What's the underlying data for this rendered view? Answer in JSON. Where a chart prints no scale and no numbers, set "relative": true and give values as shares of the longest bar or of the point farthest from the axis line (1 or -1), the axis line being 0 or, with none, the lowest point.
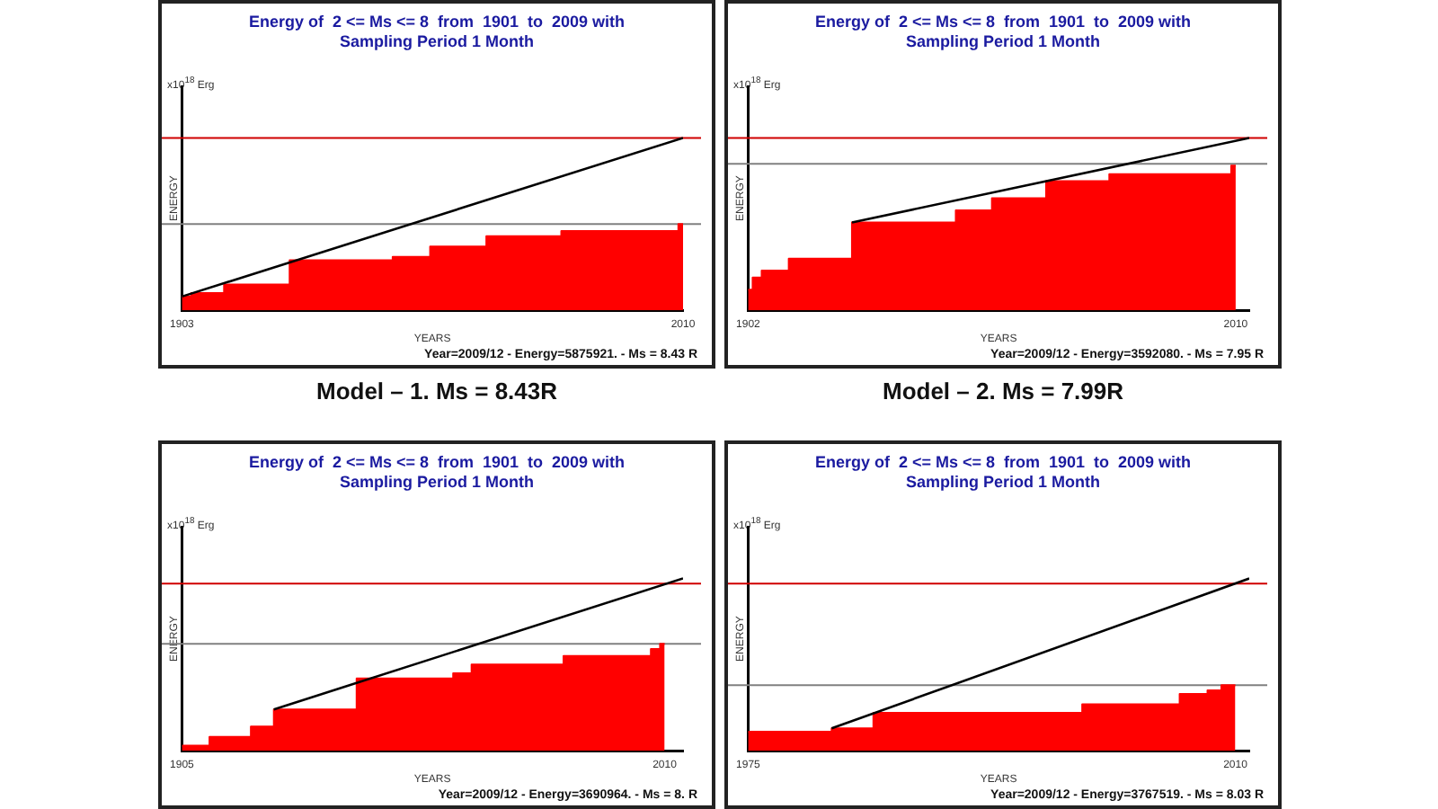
{
  "chart_data": [
    {
      "type": "area",
      "relative": true,
      "title": "Energy of  2 <= Ms <= 8  from  1901  to  2009 with\nSampling Period 1 Month",
      "xlabel": "YEARS",
      "ylabel": "ENERGY",
      "xlim": [
        1903,
        2010
      ],
      "xticks": [
        1903,
        2010
      ],
      "grid": false,
      "legend": false,
      "series": [
        {
          "color": "#ff0000",
          "x": [
            1903,
            1905,
            1905,
            1912,
            1912,
            1926,
            1926,
            1948,
            1948,
            1956,
            1956,
            1968,
            1968,
            1984,
            1984,
            2009,
            2009,
            2010
          ],
          "values": [
            0.08,
            0.08,
            0.1,
            0.1,
            0.15,
            0.15,
            0.29,
            0.29,
            0.31,
            0.31,
            0.37,
            0.37,
            0.43,
            0.43,
            0.46,
            0.46,
            0.5,
            0.5
          ]
        },
        {
          "type": "line",
          "color": "#000000",
          "x": [
            1903,
            2010
          ],
          "values": [
            0.08,
            1.0
          ]
        }
      ],
      "ref_lines": [
        {
          "axis": "y",
          "value": 1.0,
          "color": "#d00000"
        },
        {
          "axis": "y",
          "value": 0.5,
          "color": "#808080"
        }
      ],
      "annotations": [
        "x10$^{18}$ Erg",
        "Year=2009/12 - Energy=5875921. - Ms = 8.43 R",
        "Model – 1. Ms = 8.43R"
      ]
    },
    {
      "type": "area",
      "relative": true,
      "title": "Energy of  2 <= Ms <= 8  from  1901  to  2009 with\nSampling Period 1 Month",
      "xlabel": "YEARS",
      "ylabel": "ENERGY",
      "xlim": [
        1902,
        2013
      ],
      "xticks": [
        1902,
        2010
      ],
      "grid": false,
      "legend": false,
      "series": [
        {
          "color": "#ff0000",
          "x": [
            1902,
            1903,
            1903,
            1905,
            1905,
            1911,
            1911,
            1925,
            1925,
            1948,
            1948,
            1956,
            1956,
            1968,
            1968,
            1982,
            1982,
            2009,
            2009,
            2010
          ],
          "values": [
            0.12,
            0.12,
            0.19,
            0.19,
            0.23,
            0.23,
            0.3,
            0.3,
            0.51,
            0.51,
            0.58,
            0.58,
            0.65,
            0.65,
            0.75,
            0.75,
            0.79,
            0.79,
            0.84,
            0.84
          ]
        },
        {
          "type": "line",
          "color": "#000000",
          "x": [
            1925,
            2013
          ],
          "values": [
            0.51,
            1.0
          ]
        }
      ],
      "ref_lines": [
        {
          "axis": "y",
          "value": 1.0,
          "color": "#d00000"
        },
        {
          "axis": "y",
          "value": 0.85,
          "color": "#808080"
        }
      ],
      "annotations": [
        "x10$^{18}$ Erg",
        "Year=2009/12 - Energy=3592080. - Ms = 7.95 R",
        "Model – 2. Ms = 7.99R"
      ]
    },
    {
      "type": "area",
      "relative": true,
      "title": "Energy of  2 <= Ms <= 8  from  1901  to  2009 with\nSampling Period 1 Month",
      "xlabel": "YEARS",
      "ylabel": "ENERGY",
      "xlim": [
        1905,
        2014
      ],
      "xticks": [
        1905,
        2010
      ],
      "grid": false,
      "legend": false,
      "series": [
        {
          "color": "#ff0000",
          "x": [
            1905,
            1911,
            1911,
            1920,
            1920,
            1925,
            1925,
            1943,
            1943,
            1964,
            1964,
            1968,
            1968,
            1988,
            1988,
            2007,
            2007,
            2009,
            2009,
            2010
          ],
          "values": [
            0.03,
            0.03,
            0.08,
            0.08,
            0.14,
            0.14,
            0.24,
            0.24,
            0.42,
            0.42,
            0.45,
            0.45,
            0.5,
            0.5,
            0.55,
            0.55,
            0.59,
            0.59,
            0.62,
            0.62
          ]
        },
        {
          "type": "line",
          "color": "#000000",
          "x": [
            1925,
            2014
          ],
          "values": [
            0.24,
            1.0
          ]
        }
      ],
      "ref_lines": [
        {
          "axis": "y",
          "value": 0.97,
          "color": "#d00000"
        },
        {
          "axis": "y",
          "value": 0.62,
          "color": "#808080"
        }
      ],
      "annotations": [
        "x10$^{18}$ Erg",
        "Year=2009/12 - Energy=3690964. - Ms = 8. R"
      ]
    },
    {
      "type": "area",
      "relative": true,
      "title": "Energy of  2 <= Ms <= 8  from  1901  to  2009 with\nSampling Period 1 Month",
      "xlabel": "YEARS",
      "ylabel": "ENERGY",
      "xlim": [
        1975,
        2011
      ],
      "xticks": [
        1975,
        2010
      ],
      "grid": false,
      "legend": false,
      "series": [
        {
          "color": "#ff0000",
          "x": [
            1975,
            1981,
            1981,
            1984,
            1984,
            1999,
            1999,
            2006,
            2006,
            2008,
            2008,
            2009,
            2009,
            2010
          ],
          "values": [
            0.11,
            0.11,
            0.13,
            0.13,
            0.22,
            0.22,
            0.27,
            0.27,
            0.33,
            0.33,
            0.35,
            0.35,
            0.38,
            0.38
          ]
        },
        {
          "type": "line",
          "color": "#000000",
          "x": [
            1981,
            2011
          ],
          "values": [
            0.13,
            1.0
          ]
        }
      ],
      "ref_lines": [
        {
          "axis": "y",
          "value": 0.97,
          "color": "#d00000"
        },
        {
          "axis": "y",
          "value": 0.38,
          "color": "#808080"
        }
      ],
      "annotations": [
        "x10$^{18}$ Erg",
        "Year=2009/12 - Energy=3767519. - Ms = 8.03 R"
      ]
    }
  ]
}
